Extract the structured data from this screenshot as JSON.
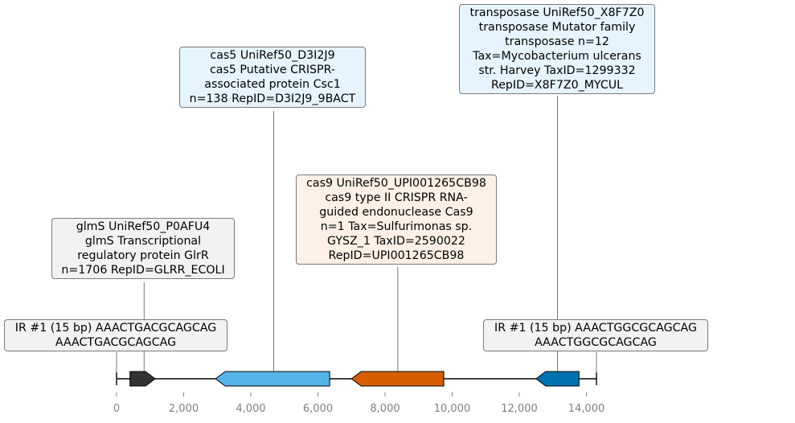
{
  "chart_data": {
    "type": "diagram",
    "title": "",
    "xlabel": "",
    "axis": {
      "xlim": [
        0,
        14300
      ],
      "ticks": [
        0,
        2000,
        4000,
        6000,
        8000,
        10000,
        12000,
        14000
      ],
      "tick_labels": [
        "0",
        "2,000",
        "4,000",
        "6,000",
        "8,000",
        "10,000",
        "12,000",
        "14,000"
      ]
    },
    "backbone": {
      "start": 0,
      "end": 14300
    },
    "genes": [
      {
        "name": "glmS",
        "start": 400,
        "end": 1150,
        "strand": "+",
        "color": "#333333"
      },
      {
        "name": "cas5",
        "start": 2950,
        "end": 6350,
        "strand": "-",
        "color": "#56b4e9"
      },
      {
        "name": "cas9",
        "start": 7000,
        "end": 9750,
        "strand": "-",
        "color": "#d55e00"
      },
      {
        "name": "transposase",
        "start": 12500,
        "end": 13780,
        "strand": "-",
        "color": "#0072b2"
      }
    ],
    "annotations": [
      {
        "id": "ir-left",
        "position": 0,
        "style": "gray",
        "text": "IR #1 (15 bp) AAACTGACGCAGCAG\nAAACTGACGCAGCAG"
      },
      {
        "id": "glms",
        "position": 820,
        "style": "gray",
        "text": "glmS UniRef50_P0AFU4\nglmS Transcriptional\nregulatory protein GlrR\nn=1706 RepID=GLRR_ECOLI"
      },
      {
        "id": "cas5",
        "position": 4680,
        "style": "blue",
        "text": "cas5 UniRef50_D3I2J9\ncas5 Putative CRISPR-\nassociated protein Csc1\nn=138 RepID=D3I2J9_9BACT"
      },
      {
        "id": "cas9",
        "position": 8380,
        "style": "orange",
        "text": "cas9 UniRef50_UPI001265CB98\ncas9 type II CRISPR RNA-\nguided endonuclease Cas9\nn=1 Tax=Sulfurimonas sp.\nGYSZ_1 TaxID=2590022\nRepID=UPI001265CB98"
      },
      {
        "id": "transposase",
        "position": 13140,
        "style": "blue",
        "text": "transposase UniRef50_X8F7Z0\ntransposase Mutator family\ntransposase n=12\nTax=Mycobacterium ulcerans\nstr. Harvey TaxID=1299332\nRepID=X8F7Z0_MYCUL"
      },
      {
        "id": "ir-right",
        "position": 14300,
        "style": "gray",
        "text": "IR #1 (15 bp) AAACTGGCGCAGCAG\nAAACTGGCGCAGCAG"
      }
    ]
  }
}
